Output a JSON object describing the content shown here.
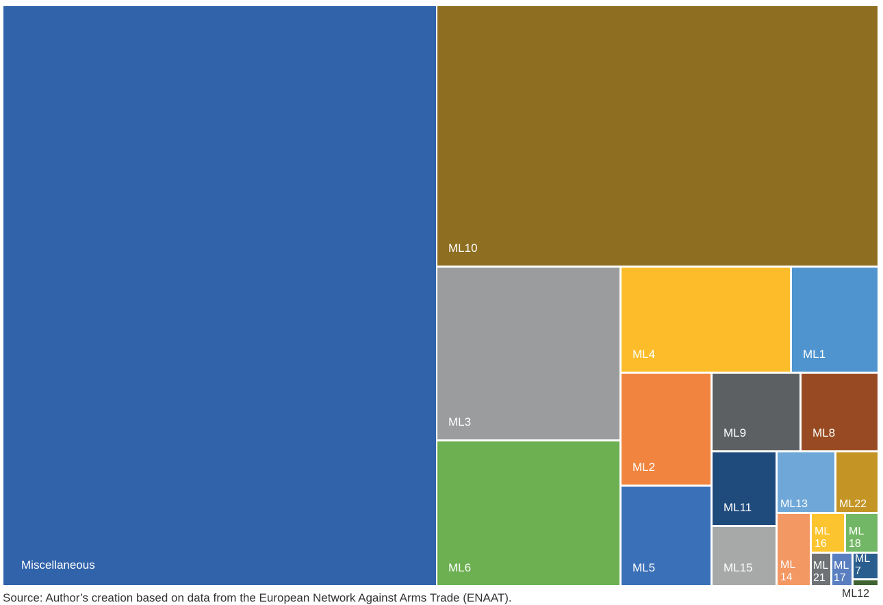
{
  "source": "Source: Author’s creation based on data from the European Network Against Arms Trade (ENAAT).",
  "chart_data": {
    "type": "treemap",
    "title": "",
    "values_note": "relative areas estimated from tile sizes",
    "tiles": [
      {
        "id": "misc",
        "label": "Miscellaneous",
        "value": 538000,
        "color": "#3163aa"
      },
      {
        "id": "ml10",
        "label": "ML10",
        "value": 245000,
        "color": "#8e6e21"
      },
      {
        "id": "ml3",
        "label": "ML3",
        "value": 69000,
        "color": "#9b9c9e"
      },
      {
        "id": "ml6",
        "label": "ML6",
        "value": 56000,
        "color": "#6db052"
      },
      {
        "id": "ml4",
        "label": "ML4",
        "value": 38300,
        "color": "#fdbd2b"
      },
      {
        "id": "ml1",
        "label": "ML1",
        "value": 19700,
        "color": "#4f94cf"
      },
      {
        "id": "ml2",
        "label": "ML2",
        "value": 21700,
        "color": "#f1843e"
      },
      {
        "id": "ml5",
        "label": "ML5",
        "value": 19200,
        "color": "#3a70b7"
      },
      {
        "id": "ml9",
        "label": "ML9",
        "value": 14800,
        "color": "#5c6062"
      },
      {
        "id": "ml8",
        "label": "ML8",
        "value": 13300,
        "color": "#984b22"
      },
      {
        "id": "ml11",
        "label": "ML11",
        "value": 10100,
        "color": "#1e4a7c"
      },
      {
        "id": "ml15",
        "label": "ML15",
        "value": 7600,
        "color": "#a7a9a9"
      },
      {
        "id": "ml13",
        "label": "ML13",
        "value": 7700,
        "color": "#6fa8d8"
      },
      {
        "id": "ml22",
        "label": "ML22",
        "value": 5300,
        "color": "#c49425"
      },
      {
        "id": "ml14",
        "label": "ML\n14",
        "value": 4700,
        "color": "#f39763"
      },
      {
        "id": "ml16",
        "label": "ML\n16",
        "value": 2600,
        "color": "#fcc42f"
      },
      {
        "id": "ml18",
        "label": "ML\n18",
        "value": 2300,
        "color": "#72b765"
      },
      {
        "id": "ml21",
        "label": "ML\n21",
        "value": 1200,
        "color": "#6e7274"
      },
      {
        "id": "ml17",
        "label": "ML\n17",
        "value": 1200,
        "color": "#5a7fc0"
      },
      {
        "id": "ml7",
        "label": "ML\n7",
        "value": 1500,
        "color": "#2a5e8e"
      },
      {
        "id": "ml12",
        "label": "ML12",
        "value": 300,
        "color": "#3e6330"
      }
    ]
  }
}
